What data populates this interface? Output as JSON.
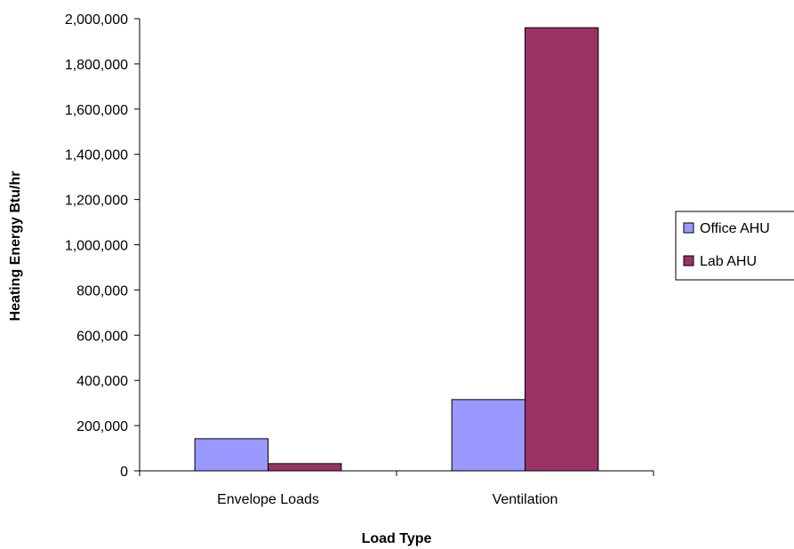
{
  "chart_data": {
    "type": "bar",
    "title": "",
    "xlabel": "Load Type",
    "ylabel": "Heating Energy Btu/hr",
    "categories": [
      "Envelope Loads",
      "Ventilation"
    ],
    "series": [
      {
        "name": "Office AHU",
        "color": "#9999FF",
        "values": [
          142000,
          315000
        ]
      },
      {
        "name": "Lab AHU",
        "color": "#993366",
        "values": [
          32000,
          1960000
        ]
      }
    ],
    "ylim": [
      0,
      2000000
    ],
    "yticks": [
      "0",
      "200,000",
      "400,000",
      "600,000",
      "800,000",
      "1,000,000",
      "1,200,000",
      "1,400,000",
      "1,600,000",
      "1,800,000",
      "2,000,000"
    ],
    "grid": false,
    "legend_position": "right"
  }
}
